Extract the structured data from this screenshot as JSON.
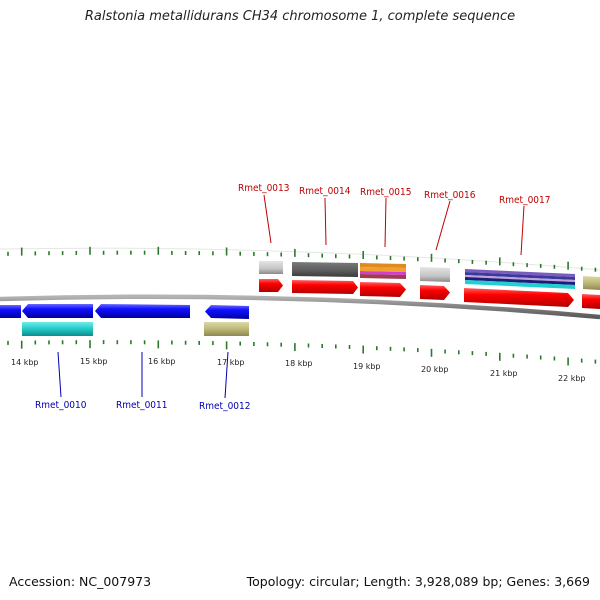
{
  "title": "Ralstonia metallidurans CH34 chromosome 1, complete sequence",
  "accession": "Accession: NC_007973",
  "summary": "Topology: circular; Length: 3,928,089 bp; Genes: 3,669",
  "kbp_labels": [
    "14 kbp",
    "15 kbp",
    "16 kbp",
    "17 kbp",
    "18 kbp",
    "19 kbp",
    "20 kbp",
    "21 kbp",
    "22 kbp"
  ],
  "top_genes": [
    "Rmet_0013",
    "Rmet_0014",
    "Rmet_0015",
    "Rmet_0016",
    "Rmet_0017"
  ],
  "bottom_genes": [
    "Rmet_0010",
    "Rmet_0011",
    "Rmet_0012"
  ],
  "colors": {
    "forward_cds": "#ff0000",
    "reverse_cds": "#0000ff",
    "backbone": "#808080",
    "ticks": "#2a7a2a",
    "label_top": "#c00000",
    "label_bottom": "#0000b0"
  }
}
